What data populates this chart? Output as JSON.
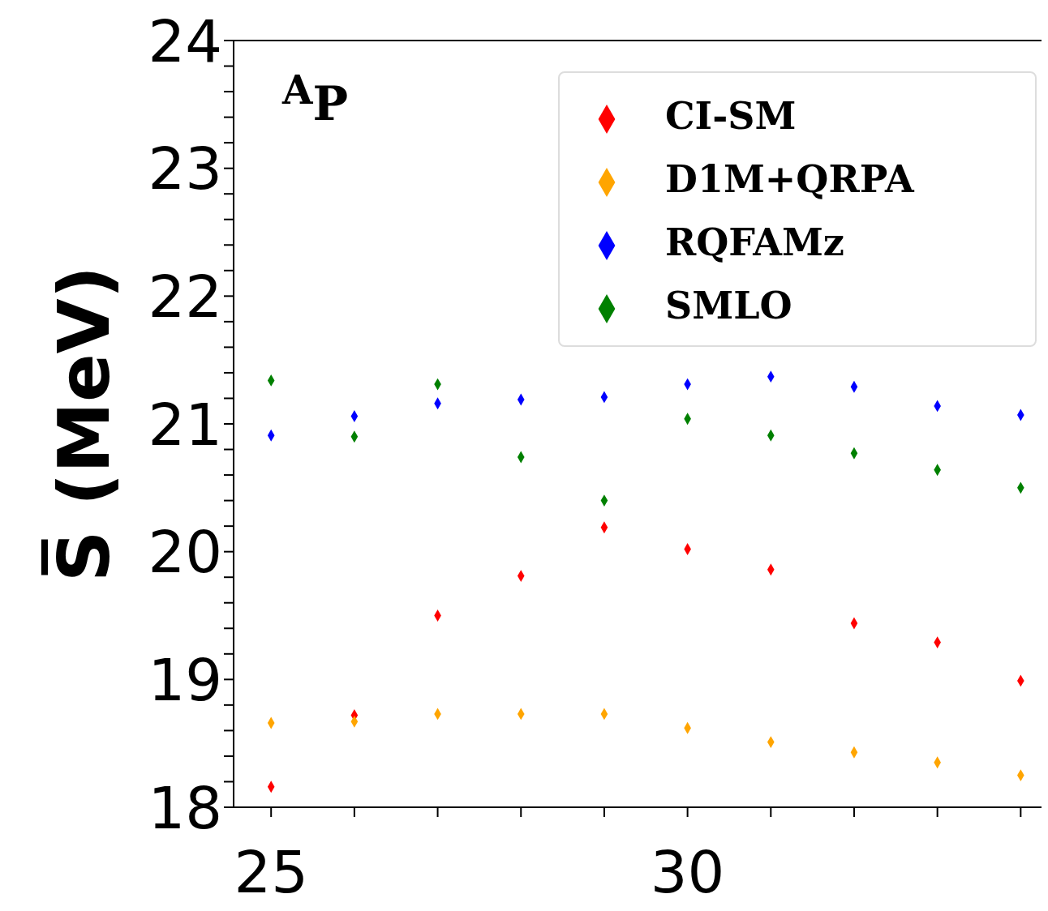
{
  "chart_data": {
    "type": "scatter",
    "ylabel": "S̅ (MeV)",
    "annotations": [
      "$^{A}$P"
    ],
    "marker": "diamond",
    "legend": "top right",
    "grid": false,
    "x": [
      25,
      26,
      27,
      28,
      29,
      30,
      31,
      32,
      33,
      34
    ],
    "xlim": [
      24.55,
      34.25
    ],
    "xticks": [
      25,
      {
        "value": 26,
        "label": null
      },
      {
        "value": 27,
        "label": null
      },
      {
        "value": 28,
        "label": null
      },
      {
        "value": 29,
        "label": null
      },
      30,
      {
        "value": 31,
        "label": null
      },
      {
        "value": 32,
        "label": null
      },
      {
        "value": 33,
        "label": null
      },
      {
        "value": 34,
        "label": null
      }
    ],
    "ylim": [
      18,
      24
    ],
    "yticks": [
      18,
      {
        "value": 18.2,
        "label": null
      },
      {
        "value": 18.4,
        "label": null
      },
      {
        "value": 18.6,
        "label": null
      },
      {
        "value": 18.8,
        "label": null
      },
      19,
      {
        "value": 19.2,
        "label": null
      },
      {
        "value": 19.4,
        "label": null
      },
      {
        "value": 19.6,
        "label": null
      },
      {
        "value": 19.8,
        "label": null
      },
      20,
      {
        "value": 20.2,
        "label": null
      },
      {
        "value": 20.4,
        "label": null
      },
      {
        "value": 20.6,
        "label": null
      },
      {
        "value": 20.8,
        "label": null
      },
      21,
      {
        "value": 21.2,
        "label": null
      },
      {
        "value": 21.4,
        "label": null
      },
      {
        "value": 21.6,
        "label": null
      },
      {
        "value": 21.8,
        "label": null
      },
      22,
      {
        "value": 22.2,
        "label": null
      },
      {
        "value": 22.4,
        "label": null
      },
      {
        "value": 22.6,
        "label": null
      },
      {
        "value": 22.8,
        "label": null
      },
      23,
      {
        "value": 23.2,
        "label": null
      },
      {
        "value": 23.4,
        "label": null
      },
      {
        "value": 23.6,
        "label": null
      },
      {
        "value": 23.8,
        "label": null
      },
      24
    ],
    "series": [
      {
        "name": "CI-SM",
        "color": "#ff0000",
        "values": [
          18.16,
          18.72,
          19.5,
          19.81,
          20.19,
          20.02,
          19.86,
          19.44,
          19.29,
          18.99
        ]
      },
      {
        "name": "D1M+QRPA",
        "color": "#ffa500",
        "values": [
          18.66,
          18.67,
          18.73,
          18.73,
          18.73,
          18.62,
          18.51,
          18.43,
          18.35,
          18.25
        ]
      },
      {
        "name": "RQFAMz",
        "color": "#0000ff",
        "values": [
          20.91,
          21.06,
          21.16,
          21.19,
          21.21,
          21.31,
          21.37,
          21.29,
          21.14,
          21.07
        ]
      },
      {
        "name": "SMLO",
        "color": "#008000",
        "values": [
          21.34,
          20.9,
          21.31,
          20.74,
          20.4,
          21.04,
          20.91,
          20.77,
          20.64,
          20.5
        ]
      }
    ]
  }
}
